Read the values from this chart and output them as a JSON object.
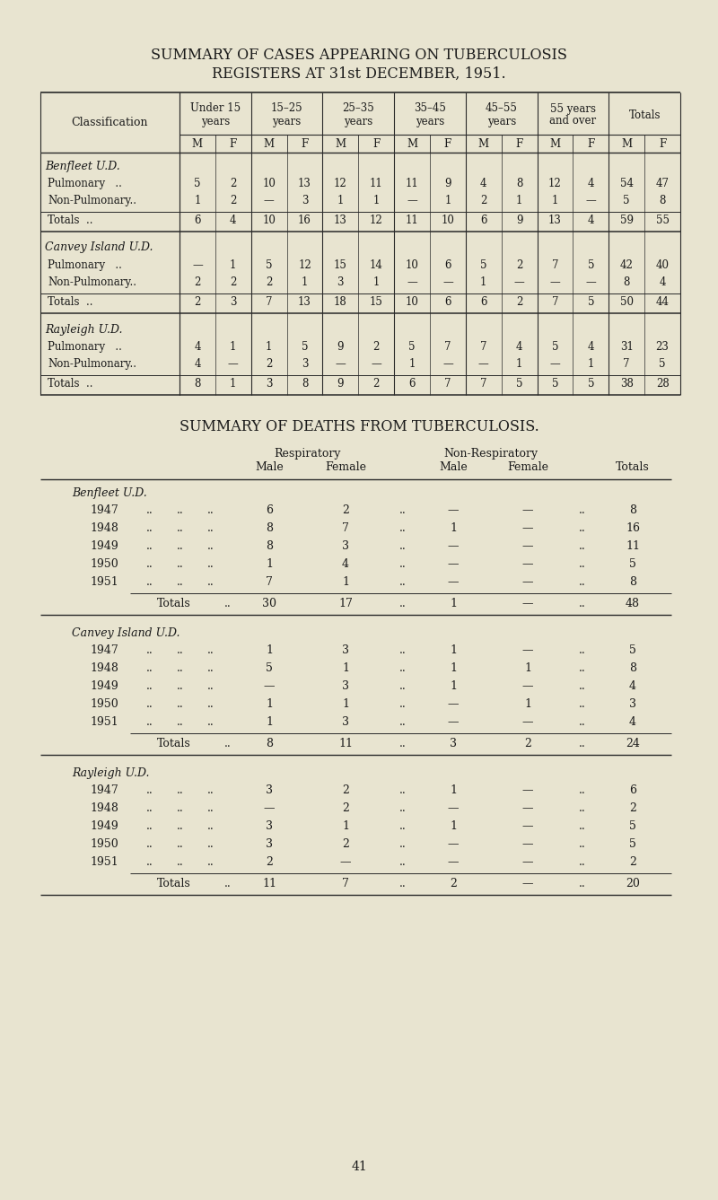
{
  "bg_color": "#e8e4d0",
  "title1": "SUMMARY OF CASES APPEARING ON TUBERCULOSIS",
  "title2": "REGISTERS AT 31st DECEMBER, 1951.",
  "title3": "SUMMARY OF DEATHS FROM TUBERCULOSIS.",
  "cases_table": {
    "sections": [
      {
        "name": "Benfleet U.D.",
        "rows": [
          {
            "label": "Pulmonary   ..",
            "values": [
              "5",
              "2",
              "10",
              "13",
              "12",
              "11",
              "11",
              "9",
              "4",
              "8",
              "12",
              "4",
              "54",
              "47"
            ]
          },
          {
            "label": "Non-Pulmonary..",
            "values": [
              "1",
              "2",
              "—",
              "3",
              "1",
              "1",
              "—",
              "1",
              "2",
              "1",
              "1",
              "—",
              "5",
              "8"
            ]
          }
        ],
        "totals": [
          "6",
          "4",
          "10",
          "16",
          "13",
          "12",
          "11",
          "10",
          "6",
          "9",
          "13",
          "4",
          "59",
          "55"
        ]
      },
      {
        "name": "Canvey Island U.D.",
        "rows": [
          {
            "label": "Pulmonary   ..",
            "values": [
              "—",
              "1",
              "5",
              "12",
              "15",
              "14",
              "10",
              "6",
              "5",
              "2",
              "7",
              "5",
              "42",
              "40"
            ]
          },
          {
            "label": "Non-Pulmonary..",
            "values": [
              "2",
              "2",
              "2",
              "1",
              "3",
              "1",
              "—",
              "—",
              "1",
              "—",
              "—",
              "—",
              "8",
              "4"
            ]
          }
        ],
        "totals": [
          "2",
          "3",
          "7",
          "13",
          "18",
          "15",
          "10",
          "6",
          "6",
          "2",
          "7",
          "5",
          "50",
          "44"
        ]
      },
      {
        "name": "Rayleigh U.D.",
        "rows": [
          {
            "label": "Pulmonary   ..",
            "values": [
              "4",
              "1",
              "1",
              "5",
              "9",
              "2",
              "5",
              "7",
              "7",
              "4",
              "5",
              "4",
              "31",
              "23"
            ]
          },
          {
            "label": "Non-Pulmonary..",
            "values": [
              "4",
              "—",
              "2",
              "3",
              "—",
              "—",
              "1",
              "—",
              "—",
              "1",
              "—",
              "1",
              "7",
              "5"
            ]
          }
        ],
        "totals": [
          "8",
          "1",
          "3",
          "8",
          "9",
          "2",
          "6",
          "7",
          "7",
          "5",
          "5",
          "5",
          "38",
          "28"
        ]
      }
    ]
  },
  "deaths_table": {
    "sections": [
      {
        "name": "Benfleet U.D.",
        "rows": [
          {
            "year": "1947",
            "values": [
              "6",
              "2",
              "—",
              "—",
              "8"
            ]
          },
          {
            "year": "1948",
            "values": [
              "8",
              "7",
              "1",
              "—",
              "16"
            ]
          },
          {
            "year": "1949",
            "values": [
              "8",
              "3",
              "—",
              "—",
              "11"
            ]
          },
          {
            "year": "1950",
            "values": [
              "1",
              "4",
              "—",
              "—",
              "5"
            ]
          },
          {
            "year": "1951",
            "values": [
              "7",
              "1",
              "—",
              "—",
              "8"
            ]
          }
        ],
        "totals": [
          "30",
          "17",
          "1",
          "—",
          "48"
        ]
      },
      {
        "name": "Canvey Island U.D.",
        "rows": [
          {
            "year": "1947",
            "values": [
              "1",
              "3",
              "1",
              "—",
              "5"
            ]
          },
          {
            "year": "1948",
            "values": [
              "5",
              "1",
              "1",
              "1",
              "8"
            ]
          },
          {
            "year": "1949",
            "values": [
              "—",
              "3",
              "1",
              "—",
              "4"
            ]
          },
          {
            "year": "1950",
            "values": [
              "1",
              "1",
              "—",
              "1",
              "3"
            ]
          },
          {
            "year": "1951",
            "values": [
              "1",
              "3",
              "—",
              "—",
              "4"
            ]
          }
        ],
        "totals": [
          "8",
          "11",
          "3",
          "2",
          "24"
        ]
      },
      {
        "name": "Rayleigh U.D.",
        "rows": [
          {
            "year": "1947",
            "values": [
              "3",
              "2",
              "1",
              "—",
              "6"
            ]
          },
          {
            "year": "1948",
            "values": [
              "—",
              "2",
              "—",
              "—",
              "2"
            ]
          },
          {
            "year": "1949",
            "values": [
              "3",
              "1",
              "1",
              "—",
              "5"
            ]
          },
          {
            "year": "1950",
            "values": [
              "3",
              "2",
              "—",
              "—",
              "5"
            ]
          },
          {
            "year": "1951",
            "values": [
              "2",
              "—",
              "—",
              "—",
              "2"
            ]
          }
        ],
        "totals": [
          "11",
          "7",
          "2",
          "—",
          "20"
        ]
      }
    ]
  },
  "page_number": "41"
}
